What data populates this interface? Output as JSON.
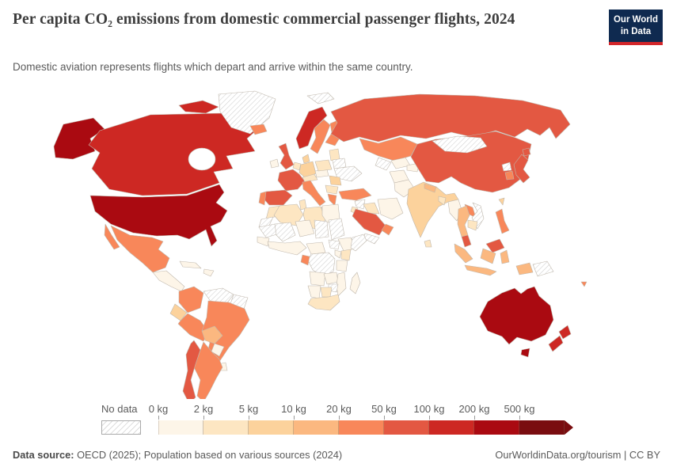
{
  "header": {
    "title": "Per capita CO₂ emissions from domestic commercial passenger flights, 2024",
    "subtitle": "Domestic aviation represents flights which depart and arrive within the same country."
  },
  "logo": {
    "line1": "Our World",
    "line2": "in Data",
    "bg_color": "#0f2a50",
    "accent_color": "#d3262a"
  },
  "legend": {
    "no_data_label": "No data",
    "tick_labels": [
      "0 kg",
      "2 kg",
      "5 kg",
      "10 kg",
      "20 kg",
      "50 kg",
      "100 kg",
      "200 kg",
      "500 kg"
    ]
  },
  "footer": {
    "source_label": "Data source:",
    "source_text": " OECD (2025); Population based on various sources (2024)",
    "link_text": "OurWorldinData.org/tourism | CC BY"
  },
  "chart_data": {
    "type": "choropleth-world-map",
    "title": "Per capita CO₂ emissions from domestic commercial passenger flights, 2024",
    "unit": "kg CO₂ per capita",
    "bins": [
      {
        "range": "0-2 kg",
        "color": "#fdf5e8"
      },
      {
        "range": "2-5 kg",
        "color": "#fde6c2"
      },
      {
        "range": "5-10 kg",
        "color": "#fcd29c"
      },
      {
        "range": "10-20 kg",
        "color": "#fbb880"
      },
      {
        "range": "20-50 kg",
        "color": "#f8875a"
      },
      {
        "range": "50-100 kg",
        "color": "#e35842"
      },
      {
        "range": "100-200 kg",
        "color": "#cd2823"
      },
      {
        "range": "200-500 kg",
        "color": "#aa0a11"
      },
      {
        "range": "500+ kg",
        "color": "#7a0d10"
      }
    ],
    "no_data": {
      "label": "No data",
      "pattern": "diagonal-hatch",
      "hatch_color": "#cfcfcf"
    },
    "countries": [
      {
        "name": "United States",
        "range": "200-500 kg"
      },
      {
        "name": "Canada",
        "range": "100-200 kg"
      },
      {
        "name": "Greenland",
        "range": "No data"
      },
      {
        "name": "Mexico",
        "range": "20-50 kg"
      },
      {
        "name": "Guatemala",
        "range": "0-2 kg"
      },
      {
        "name": "Cuba",
        "range": "0-2 kg"
      },
      {
        "name": "Haiti",
        "range": "0-2 kg"
      },
      {
        "name": "Colombia",
        "range": "20-50 kg"
      },
      {
        "name": "Venezuela",
        "range": "No data"
      },
      {
        "name": "Guyana",
        "range": "No data"
      },
      {
        "name": "Ecuador",
        "range": "5-10 kg"
      },
      {
        "name": "Peru",
        "range": "20-50 kg"
      },
      {
        "name": "Brazil",
        "range": "20-50 kg"
      },
      {
        "name": "Bolivia",
        "range": "10-20 kg"
      },
      {
        "name": "Paraguay",
        "range": "0-2 kg"
      },
      {
        "name": "Uruguay",
        "range": "0-2 kg"
      },
      {
        "name": "Argentina",
        "range": "20-50 kg"
      },
      {
        "name": "Chile",
        "range": "50-100 kg"
      },
      {
        "name": "Iceland",
        "range": "20-50 kg"
      },
      {
        "name": "Ireland",
        "range": "0-2 kg"
      },
      {
        "name": "United Kingdom",
        "range": "50-100 kg"
      },
      {
        "name": "Norway",
        "range": "100-200 kg"
      },
      {
        "name": "Sweden",
        "range": "20-50 kg"
      },
      {
        "name": "Finland",
        "range": "20-50 kg"
      },
      {
        "name": "Svalbard",
        "range": "No data"
      },
      {
        "name": "Denmark",
        "range": "5-10 kg"
      },
      {
        "name": "Germany",
        "range": "5-10 kg"
      },
      {
        "name": "Netherlands",
        "range": "2-5 kg"
      },
      {
        "name": "France",
        "range": "50-100 kg"
      },
      {
        "name": "Spain",
        "range": "50-100 kg"
      },
      {
        "name": "Portugal",
        "range": "20-50 kg"
      },
      {
        "name": "Italy",
        "range": "20-50 kg"
      },
      {
        "name": "Austria",
        "range": "2-5 kg"
      },
      {
        "name": "Czechia",
        "range": "0-2 kg"
      },
      {
        "name": "Poland",
        "range": "2-5 kg"
      },
      {
        "name": "Lithuania",
        "range": "2-5 kg"
      },
      {
        "name": "Belarus",
        "range": "No data"
      },
      {
        "name": "Ukraine",
        "range": "No data"
      },
      {
        "name": "Romania",
        "range": "5-10 kg"
      },
      {
        "name": "Bulgaria",
        "range": "2-5 kg"
      },
      {
        "name": "Greece",
        "range": "20-50 kg"
      },
      {
        "name": "Turkey",
        "range": "20-50 kg"
      },
      {
        "name": "Syria",
        "range": "No data"
      },
      {
        "name": "Iraq",
        "range": "2-5 kg"
      },
      {
        "name": "Iran",
        "range": "0-2 kg"
      },
      {
        "name": "Saudi Arabia",
        "range": "50-100 kg"
      },
      {
        "name": "Oman",
        "range": "20-50 kg"
      },
      {
        "name": "Yemen",
        "range": "No data"
      },
      {
        "name": "Jordan",
        "range": "2-5 kg"
      },
      {
        "name": "Russia",
        "range": "50-100 kg"
      },
      {
        "name": "Kazakhstan",
        "range": "20-50 kg"
      },
      {
        "name": "Turkmenistan",
        "range": "No data"
      },
      {
        "name": "Uzbekistan",
        "range": "0-2 kg"
      },
      {
        "name": "Kyrgyzstan",
        "range": "0-2 kg"
      },
      {
        "name": "Afghanistan",
        "range": "0-2 kg"
      },
      {
        "name": "Pakistan",
        "range": "0-2 kg"
      },
      {
        "name": "India",
        "range": "5-10 kg"
      },
      {
        "name": "Nepal",
        "range": "10-20 kg"
      },
      {
        "name": "Bangladesh",
        "range": "2-5 kg"
      },
      {
        "name": "Sri Lanka",
        "range": "2-5 kg"
      },
      {
        "name": "China",
        "range": "50-100 kg"
      },
      {
        "name": "Mongolia",
        "range": "No data"
      },
      {
        "name": "Japan",
        "range": "50-100 kg"
      },
      {
        "name": "South Korea",
        "range": "20-50 kg"
      },
      {
        "name": "North Korea",
        "range": "No data"
      },
      {
        "name": "Taiwan",
        "range": "5-10 kg"
      },
      {
        "name": "Myanmar",
        "range": "0-2 kg"
      },
      {
        "name": "Thailand",
        "range": "10-20 kg"
      },
      {
        "name": "Laos",
        "range": "20-50 kg"
      },
      {
        "name": "Vietnam",
        "range": "No data"
      },
      {
        "name": "Cambodia",
        "range": "2-5 kg"
      },
      {
        "name": "Malaysia",
        "range": "50-100 kg"
      },
      {
        "name": "Indonesia",
        "range": "10-20 kg"
      },
      {
        "name": "Philippines",
        "range": "20-50 kg"
      },
      {
        "name": "Papua New Guinea",
        "range": "No data"
      },
      {
        "name": "Fiji",
        "range": "20-50 kg"
      },
      {
        "name": "Australia",
        "range": "200-500 kg"
      },
      {
        "name": "New Zealand",
        "range": "100-200 kg"
      },
      {
        "name": "Morocco",
        "range": "2-5 kg"
      },
      {
        "name": "Western Sahara",
        "range": "No data"
      },
      {
        "name": "Algeria",
        "range": "2-5 kg"
      },
      {
        "name": "Tunisia",
        "range": "2-5 kg"
      },
      {
        "name": "Libya",
        "range": "2-5 kg"
      },
      {
        "name": "Egypt",
        "range": "0-2 kg"
      },
      {
        "name": "Mauritania",
        "range": "No data"
      },
      {
        "name": "Mali",
        "range": "No data"
      },
      {
        "name": "Niger",
        "range": "0-2 kg"
      },
      {
        "name": "Chad",
        "range": "No data"
      },
      {
        "name": "Sudan",
        "range": "No data"
      },
      {
        "name": "South Sudan",
        "range": "No data"
      },
      {
        "name": "Senegal",
        "range": "0-2 kg"
      },
      {
        "name": "Nigeria",
        "range": "0-2 kg"
      },
      {
        "name": "Cameroon",
        "range": "0-2 kg"
      },
      {
        "name": "Ethiopia",
        "range": "0-2 kg"
      },
      {
        "name": "Somalia",
        "range": "No data"
      },
      {
        "name": "Kenya",
        "range": "2-5 kg"
      },
      {
        "name": "Uganda",
        "range": "0-2 kg"
      },
      {
        "name": "Democratic Republic of Congo",
        "range": "No data"
      },
      {
        "name": "Tanzania",
        "range": "0-2 kg"
      },
      {
        "name": "Gabon",
        "range": "20-50 kg"
      },
      {
        "name": "Angola",
        "range": "0-2 kg"
      },
      {
        "name": "Zambia",
        "range": "0-2 kg"
      },
      {
        "name": "Mozambique",
        "range": "0-2 kg"
      },
      {
        "name": "Zimbabwe",
        "range": "No data"
      },
      {
        "name": "Namibia",
        "range": "0-2 kg"
      },
      {
        "name": "Botswana",
        "range": "2-5 kg"
      },
      {
        "name": "South Africa",
        "range": "2-5 kg"
      },
      {
        "name": "Madagascar",
        "range": "0-2 kg"
      }
    ],
    "legend_position": "bottom",
    "projection": "world-equirectangular-stylized"
  }
}
